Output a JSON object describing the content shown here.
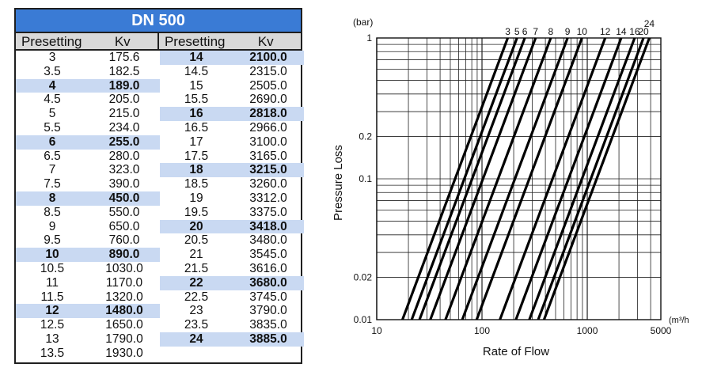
{
  "table": {
    "title": "DN 500",
    "header_presetting": "Presetting",
    "header_kv": "Kv",
    "left_rows": [
      {
        "p": "3",
        "kv": "175.6",
        "bold": false
      },
      {
        "p": "3.5",
        "kv": "182.5",
        "bold": false
      },
      {
        "p": "4",
        "kv": "189.0",
        "bold": true
      },
      {
        "p": "4.5",
        "kv": "205.0",
        "bold": false
      },
      {
        "p": "5",
        "kv": "215.0",
        "bold": false
      },
      {
        "p": "5.5",
        "kv": "234.0",
        "bold": false
      },
      {
        "p": "6",
        "kv": "255.0",
        "bold": true
      },
      {
        "p": "6.5",
        "kv": "280.0",
        "bold": false
      },
      {
        "p": "7",
        "kv": "323.0",
        "bold": false
      },
      {
        "p": "7.5",
        "kv": "390.0",
        "bold": false
      },
      {
        "p": "8",
        "kv": "450.0",
        "bold": true
      },
      {
        "p": "8.5",
        "kv": "550.0",
        "bold": false
      },
      {
        "p": "9",
        "kv": "650.0",
        "bold": false
      },
      {
        "p": "9.5",
        "kv": "760.0",
        "bold": false
      },
      {
        "p": "10",
        "kv": "890.0",
        "bold": true
      },
      {
        "p": "10.5",
        "kv": "1030.0",
        "bold": false
      },
      {
        "p": "11",
        "kv": "1170.0",
        "bold": false
      },
      {
        "p": "11.5",
        "kv": "1320.0",
        "bold": false
      },
      {
        "p": "12",
        "kv": "1480.0",
        "bold": true
      },
      {
        "p": "12.5",
        "kv": "1650.0",
        "bold": false
      },
      {
        "p": "13",
        "kv": "1790.0",
        "bold": false
      },
      {
        "p": "13.5",
        "kv": "1930.0",
        "bold": false
      }
    ],
    "right_rows": [
      {
        "p": "14",
        "kv": "2100.0",
        "bold": true
      },
      {
        "p": "14.5",
        "kv": "2315.0",
        "bold": false
      },
      {
        "p": "15",
        "kv": "2505.0",
        "bold": false
      },
      {
        "p": "15.5",
        "kv": "2690.0",
        "bold": false
      },
      {
        "p": "16",
        "kv": "2818.0",
        "bold": true
      },
      {
        "p": "16.5",
        "kv": "2966.0",
        "bold": false
      },
      {
        "p": "17",
        "kv": "3100.0",
        "bold": false
      },
      {
        "p": "17.5",
        "kv": "3165.0",
        "bold": false
      },
      {
        "p": "18",
        "kv": "3215.0",
        "bold": true
      },
      {
        "p": "18.5",
        "kv": "3260.0",
        "bold": false
      },
      {
        "p": "19",
        "kv": "3312.0",
        "bold": false
      },
      {
        "p": "19.5",
        "kv": "3375.0",
        "bold": false
      },
      {
        "p": "20",
        "kv": "3418.0",
        "bold": true
      },
      {
        "p": "20.5",
        "kv": "3480.0",
        "bold": false
      },
      {
        "p": "21",
        "kv": "3545.0",
        "bold": false
      },
      {
        "p": "21.5",
        "kv": "3616.0",
        "bold": false
      },
      {
        "p": "22",
        "kv": "3680.0",
        "bold": true
      },
      {
        "p": "22.5",
        "kv": "3745.0",
        "bold": false
      },
      {
        "p": "23",
        "kv": "3790.0",
        "bold": false
      },
      {
        "p": "23.5",
        "kv": "3835.0",
        "bold": false
      },
      {
        "p": "24",
        "kv": "3885.0",
        "bold": true
      }
    ],
    "highlight_color": "#c9d9f2",
    "title_color": "#3a7bd5"
  },
  "chart_data": {
    "type": "line",
    "x_scale": "log",
    "y_scale": "log",
    "xlim": [
      10,
      5000
    ],
    "ylim": [
      0.01,
      1
    ],
    "xticks": [
      10,
      100,
      1000,
      5000
    ],
    "xtick_labels": [
      "10",
      "100",
      "1000",
      "5000"
    ],
    "yticks": [
      0.01,
      0.02,
      0.1,
      0.2,
      1
    ],
    "ytick_labels": [
      "0.01",
      "0.02",
      "0.1",
      "0.2",
      "1"
    ],
    "xlabel": "Rate of Flow",
    "ylabel": "Pressure Loss",
    "x_unit": "(m³/h)",
    "y_unit": "(bar)",
    "grid": true,
    "series": [
      {
        "name": "3",
        "kv": 175.6
      },
      {
        "name": "5",
        "kv": 215.0
      },
      {
        "name": "6",
        "kv": 255.0
      },
      {
        "name": "7",
        "kv": 323.0
      },
      {
        "name": "8",
        "kv": 450.0
      },
      {
        "name": "9",
        "kv": 650.0
      },
      {
        "name": "10",
        "kv": 890.0
      },
      {
        "name": "12",
        "kv": 1480.0
      },
      {
        "name": "14",
        "kv": 2100.0
      },
      {
        "name": "16",
        "kv": 2818.0
      },
      {
        "name": "20",
        "kv": 3418.0
      },
      {
        "name": "24",
        "kv": 3885.0
      }
    ]
  }
}
